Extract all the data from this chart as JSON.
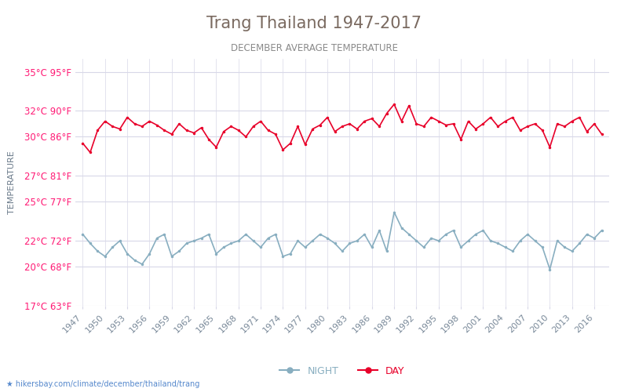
{
  "title": "Trang Thailand 1947-2017",
  "subtitle": "DECEMBER AVERAGE TEMPERATURE",
  "ylabel": "TEMPERATURE",
  "xlabel_url": "hikersbay.com/climate/december/thailand/trang",
  "yticks_c": [
    35,
    32,
    30,
    27,
    25,
    22,
    20,
    17
  ],
  "yticks_f": [
    95,
    90,
    86,
    81,
    77,
    72,
    68,
    63
  ],
  "years": [
    1947,
    1948,
    1949,
    1950,
    1951,
    1952,
    1953,
    1954,
    1955,
    1956,
    1957,
    1958,
    1959,
    1960,
    1961,
    1962,
    1963,
    1964,
    1965,
    1966,
    1967,
    1968,
    1969,
    1970,
    1971,
    1972,
    1973,
    1974,
    1975,
    1976,
    1977,
    1978,
    1979,
    1980,
    1981,
    1982,
    1983,
    1984,
    1985,
    1986,
    1987,
    1988,
    1989,
    1990,
    1991,
    1992,
    1993,
    1994,
    1995,
    1996,
    1997,
    1998,
    1999,
    2000,
    2001,
    2002,
    2003,
    2004,
    2005,
    2006,
    2007,
    2008,
    2009,
    2010,
    2011,
    2012,
    2013,
    2014,
    2015,
    2016,
    2017
  ],
  "day_temps": [
    29.5,
    28.8,
    30.5,
    31.2,
    30.8,
    30.6,
    31.5,
    31.0,
    30.8,
    31.2,
    30.9,
    30.5,
    30.2,
    31.0,
    30.5,
    30.3,
    30.7,
    29.8,
    29.2,
    30.4,
    30.8,
    30.5,
    30.0,
    30.8,
    31.2,
    30.5,
    30.2,
    29.0,
    29.5,
    30.8,
    29.4,
    30.6,
    30.9,
    31.5,
    30.4,
    30.8,
    31.0,
    30.6,
    31.2,
    31.4,
    30.8,
    31.8,
    32.5,
    31.2,
    32.4,
    31.0,
    30.8,
    31.5,
    31.2,
    30.9,
    31.0,
    29.8,
    31.2,
    30.6,
    31.0,
    31.5,
    30.8,
    31.2,
    31.5,
    30.5,
    30.8,
    31.0,
    30.5,
    29.2,
    31.0,
    30.8,
    31.2,
    31.5,
    30.4,
    31.0,
    30.2
  ],
  "night_temps": [
    22.5,
    21.8,
    21.2,
    20.8,
    21.5,
    22.0,
    21.0,
    20.5,
    20.2,
    21.0,
    22.2,
    22.5,
    20.8,
    21.2,
    21.8,
    22.0,
    22.2,
    22.5,
    21.0,
    21.5,
    21.8,
    22.0,
    22.5,
    22.0,
    21.5,
    22.2,
    22.5,
    20.8,
    21.0,
    22.0,
    21.5,
    22.0,
    22.5,
    22.2,
    21.8,
    21.2,
    21.8,
    22.0,
    22.5,
    21.5,
    22.8,
    21.2,
    24.2,
    23.0,
    22.5,
    22.0,
    21.5,
    22.2,
    22.0,
    22.5,
    22.8,
    21.5,
    22.0,
    22.5,
    22.8,
    22.0,
    21.8,
    21.5,
    21.2,
    22.0,
    22.5,
    22.0,
    21.5,
    19.8,
    22.0,
    21.5,
    21.2,
    21.8,
    22.5,
    22.2,
    22.8
  ],
  "day_color": "#e8002a",
  "night_color": "#88aec0",
  "title_color": "#7a6a60",
  "subtitle_color": "#8a8a8a",
  "tick_label_color": "#ff1a75",
  "ylabel_color": "#6a7a8a",
  "xtick_color": "#7a8a9a",
  "grid_color": "#d8d8e8",
  "url_color": "#5588cc",
  "bg_color": "#ffffff"
}
